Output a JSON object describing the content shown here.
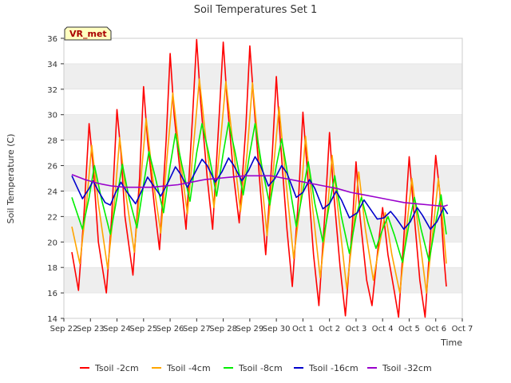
{
  "chart_data": {
    "type": "line",
    "title": "Soil Temperatures Set 1",
    "xlabel": "Time",
    "ylabel": "Soil Temperature (C)",
    "badge": "VR_met",
    "x_ticks": [
      "Sep 22",
      "Sep 23",
      "Sep 24",
      "Sep 25",
      "Sep 26",
      "Sep 27",
      "Sep 28",
      "Sep 29",
      "Sep 30",
      "Oct 1",
      "Oct 2",
      "Oct 3",
      "Oct 4",
      "Oct 5",
      "Oct 6",
      "Oct 7"
    ],
    "xlim": [
      0,
      15
    ],
    "ylim": [
      14,
      36
    ],
    "y_ticks": [
      14,
      16,
      18,
      20,
      22,
      24,
      26,
      28,
      30,
      32,
      34,
      36
    ],
    "grid": "horizontal bands",
    "legend_position": "bottom",
    "series": [
      {
        "name": "Tsoil -2cm",
        "color": "#ff0000",
        "values": [
          [
            0.3,
            19.2
          ],
          [
            0.55,
            16.2
          ],
          [
            0.75,
            22
          ],
          [
            0.95,
            29.3
          ],
          [
            1.1,
            26
          ],
          [
            1.3,
            20
          ],
          [
            1.6,
            16
          ],
          [
            1.8,
            22
          ],
          [
            2.0,
            30.4
          ],
          [
            2.15,
            27
          ],
          [
            2.3,
            22
          ],
          [
            2.6,
            17.4
          ],
          [
            2.85,
            25
          ],
          [
            3.0,
            32.2
          ],
          [
            3.15,
            28
          ],
          [
            3.4,
            23
          ],
          [
            3.6,
            19.4
          ],
          [
            3.85,
            28
          ],
          [
            4.0,
            34.8
          ],
          [
            4.15,
            30
          ],
          [
            4.4,
            25
          ],
          [
            4.6,
            21
          ],
          [
            4.85,
            30
          ],
          [
            5.0,
            35.9
          ],
          [
            5.15,
            31
          ],
          [
            5.4,
            25
          ],
          [
            5.6,
            21
          ],
          [
            5.85,
            30
          ],
          [
            6.0,
            35.7
          ],
          [
            6.15,
            31
          ],
          [
            6.4,
            25
          ],
          [
            6.6,
            21.5
          ],
          [
            6.85,
            29
          ],
          [
            7.0,
            35.4
          ],
          [
            7.15,
            31
          ],
          [
            7.4,
            24
          ],
          [
            7.6,
            19
          ],
          [
            7.85,
            27
          ],
          [
            8.0,
            33
          ],
          [
            8.15,
            28
          ],
          [
            8.4,
            21
          ],
          [
            8.6,
            16.5
          ],
          [
            8.85,
            24
          ],
          [
            9.0,
            30.2
          ],
          [
            9.15,
            26
          ],
          [
            9.4,
            19
          ],
          [
            9.6,
            15
          ],
          [
            9.85,
            23
          ],
          [
            10.0,
            28.6
          ],
          [
            10.15,
            24
          ],
          [
            10.4,
            18
          ],
          [
            10.6,
            14.2
          ],
          [
            10.85,
            21
          ],
          [
            11.0,
            26.3
          ],
          [
            11.15,
            22
          ],
          [
            11.4,
            17
          ],
          [
            11.6,
            15.0
          ],
          [
            11.85,
            20
          ],
          [
            12.0,
            22.7
          ],
          [
            12.2,
            19
          ],
          [
            12.45,
            16
          ],
          [
            12.6,
            14.1
          ],
          [
            12.85,
            22
          ],
          [
            13.0,
            26.7
          ],
          [
            13.15,
            23
          ],
          [
            13.4,
            17
          ],
          [
            13.6,
            14.1
          ],
          [
            13.85,
            22
          ],
          [
            14.0,
            26.8
          ],
          [
            14.15,
            24
          ],
          [
            14.3,
            19
          ],
          [
            14.4,
            16.5
          ]
        ]
      },
      {
        "name": "Tsoil -4cm",
        "color": "#ffa500",
        "values": [
          [
            0.3,
            21.2
          ],
          [
            0.6,
            18.3
          ],
          [
            0.85,
            23
          ],
          [
            1.05,
            27.6
          ],
          [
            1.3,
            23
          ],
          [
            1.65,
            17.9
          ],
          [
            1.9,
            23
          ],
          [
            2.1,
            28.2
          ],
          [
            2.35,
            23.5
          ],
          [
            2.65,
            19.2
          ],
          [
            2.9,
            25
          ],
          [
            3.1,
            29.7
          ],
          [
            3.35,
            25
          ],
          [
            3.65,
            20.7
          ],
          [
            3.9,
            27
          ],
          [
            4.1,
            31.7
          ],
          [
            4.35,
            27
          ],
          [
            4.65,
            22.2
          ],
          [
            4.9,
            28
          ],
          [
            5.1,
            32.8
          ],
          [
            5.35,
            28
          ],
          [
            5.65,
            22.7
          ],
          [
            5.9,
            28
          ],
          [
            6.1,
            32.6
          ],
          [
            6.35,
            28
          ],
          [
            6.65,
            22.4
          ],
          [
            6.9,
            27
          ],
          [
            7.1,
            32.5
          ],
          [
            7.35,
            27
          ],
          [
            7.65,
            20.5
          ],
          [
            7.9,
            26
          ],
          [
            8.1,
            30.6
          ],
          [
            8.35,
            25
          ],
          [
            8.65,
            18.7
          ],
          [
            8.9,
            23
          ],
          [
            9.1,
            28.3
          ],
          [
            9.35,
            23
          ],
          [
            9.65,
            17.2
          ],
          [
            9.9,
            22
          ],
          [
            10.1,
            26.8
          ],
          [
            10.35,
            22
          ],
          [
            10.65,
            16.3
          ],
          [
            10.9,
            21
          ],
          [
            11.1,
            25.5
          ],
          [
            11.35,
            21
          ],
          [
            11.65,
            17.0
          ],
          [
            11.9,
            20
          ],
          [
            12.1,
            22.3
          ],
          [
            12.35,
            19
          ],
          [
            12.65,
            16.0
          ],
          [
            12.9,
            21
          ],
          [
            13.1,
            25.0
          ],
          [
            13.35,
            21
          ],
          [
            13.65,
            16.0
          ],
          [
            13.9,
            21
          ],
          [
            14.1,
            25.0
          ],
          [
            14.25,
            22
          ],
          [
            14.4,
            18.3
          ]
        ]
      },
      {
        "name": "Tsoil -8cm",
        "color": "#00ee00",
        "values": [
          [
            0.3,
            23.5
          ],
          [
            0.7,
            21.0
          ],
          [
            0.95,
            23.5
          ],
          [
            1.15,
            26.0
          ],
          [
            1.4,
            23.5
          ],
          [
            1.75,
            20.6
          ],
          [
            2.0,
            23.5
          ],
          [
            2.2,
            26.1
          ],
          [
            2.45,
            23.5
          ],
          [
            2.75,
            21.1
          ],
          [
            3.0,
            24.5
          ],
          [
            3.2,
            27.1
          ],
          [
            3.45,
            25
          ],
          [
            3.75,
            22.3
          ],
          [
            4.0,
            26
          ],
          [
            4.2,
            28.5
          ],
          [
            4.45,
            26
          ],
          [
            4.75,
            23.2
          ],
          [
            5.0,
            27
          ],
          [
            5.2,
            29.3
          ],
          [
            5.45,
            27
          ],
          [
            5.75,
            23.6
          ],
          [
            6.0,
            27
          ],
          [
            6.2,
            29.4
          ],
          [
            6.45,
            27
          ],
          [
            6.75,
            23.7
          ],
          [
            7.0,
            27
          ],
          [
            7.2,
            29.3
          ],
          [
            7.45,
            26
          ],
          [
            7.75,
            22.9
          ],
          [
            8.0,
            26
          ],
          [
            8.2,
            28.1
          ],
          [
            8.45,
            25
          ],
          [
            8.75,
            21.2
          ],
          [
            9.0,
            24
          ],
          [
            9.2,
            26.3
          ],
          [
            9.45,
            23
          ],
          [
            9.75,
            20.0
          ],
          [
            10.0,
            23
          ],
          [
            10.2,
            25.2
          ],
          [
            10.45,
            22
          ],
          [
            10.75,
            19.1
          ],
          [
            11.0,
            22
          ],
          [
            11.2,
            23.5
          ],
          [
            11.45,
            21.5
          ],
          [
            11.75,
            19.5
          ],
          [
            12.0,
            21
          ],
          [
            12.2,
            22.0
          ],
          [
            12.45,
            20.5
          ],
          [
            12.75,
            18.4
          ],
          [
            13.0,
            21.5
          ],
          [
            13.2,
            23.5
          ],
          [
            13.45,
            21
          ],
          [
            13.75,
            18.5
          ],
          [
            14.0,
            21.5
          ],
          [
            14.2,
            23.7
          ],
          [
            14.4,
            20.6
          ]
        ]
      },
      {
        "name": "Tsoil -16cm",
        "color": "#0000cc",
        "values": [
          [
            0.3,
            25.2
          ],
          [
            0.5,
            24.3
          ],
          [
            0.7,
            23.4
          ],
          [
            0.95,
            24.2
          ],
          [
            1.1,
            24.8
          ],
          [
            1.3,
            24.0
          ],
          [
            1.55,
            23.1
          ],
          [
            1.75,
            22.9
          ],
          [
            1.95,
            23.9
          ],
          [
            2.15,
            24.7
          ],
          [
            2.35,
            24.0
          ],
          [
            2.7,
            23.0
          ],
          [
            2.95,
            24.1
          ],
          [
            3.15,
            25.1
          ],
          [
            3.35,
            24.5
          ],
          [
            3.65,
            23.6
          ],
          [
            3.95,
            24.8
          ],
          [
            4.2,
            25.9
          ],
          [
            4.4,
            25.3
          ],
          [
            4.65,
            24.3
          ],
          [
            4.9,
            25.3
          ],
          [
            5.2,
            26.5
          ],
          [
            5.4,
            26.0
          ],
          [
            5.7,
            24.7
          ],
          [
            5.95,
            25.5
          ],
          [
            6.2,
            26.6
          ],
          [
            6.4,
            26.0
          ],
          [
            6.7,
            24.8
          ],
          [
            6.95,
            25.6
          ],
          [
            7.2,
            26.7
          ],
          [
            7.4,
            26.0
          ],
          [
            7.7,
            24.4
          ],
          [
            7.95,
            25.0
          ],
          [
            8.2,
            26.0
          ],
          [
            8.4,
            25.4
          ],
          [
            8.75,
            23.5
          ],
          [
            9.0,
            23.9
          ],
          [
            9.25,
            24.9
          ],
          [
            9.45,
            24.2
          ],
          [
            9.75,
            22.6
          ],
          [
            10.0,
            23.0
          ],
          [
            10.25,
            24.0
          ],
          [
            10.45,
            23.3
          ],
          [
            10.75,
            21.9
          ],
          [
            11.05,
            22.3
          ],
          [
            11.3,
            23.3
          ],
          [
            11.5,
            22.7
          ],
          [
            11.8,
            21.8
          ],
          [
            12.05,
            21.9
          ],
          [
            12.3,
            22.4
          ],
          [
            12.5,
            21.9
          ],
          [
            12.8,
            21.0
          ],
          [
            13.05,
            21.6
          ],
          [
            13.3,
            22.7
          ],
          [
            13.5,
            22.1
          ],
          [
            13.8,
            21.0
          ],
          [
            14.05,
            21.6
          ],
          [
            14.3,
            22.7
          ],
          [
            14.45,
            22.2
          ]
        ]
      },
      {
        "name": "Tsoil -32cm",
        "color": "#9900cc",
        "values": [
          [
            0.3,
            25.3
          ],
          [
            0.8,
            24.9
          ],
          [
            1.3,
            24.6
          ],
          [
            1.8,
            24.4
          ],
          [
            2.3,
            24.3
          ],
          [
            2.8,
            24.3
          ],
          [
            3.3,
            24.3
          ],
          [
            3.8,
            24.4
          ],
          [
            4.3,
            24.5
          ],
          [
            4.8,
            24.7
          ],
          [
            5.3,
            24.9
          ],
          [
            5.8,
            25.0
          ],
          [
            6.3,
            25.1
          ],
          [
            6.8,
            25.2
          ],
          [
            7.3,
            25.2
          ],
          [
            7.8,
            25.2
          ],
          [
            8.3,
            25.0
          ],
          [
            8.8,
            24.8
          ],
          [
            9.3,
            24.6
          ],
          [
            9.8,
            24.4
          ],
          [
            10.3,
            24.2
          ],
          [
            10.8,
            23.9
          ],
          [
            11.3,
            23.7
          ],
          [
            11.8,
            23.5
          ],
          [
            12.3,
            23.3
          ],
          [
            12.8,
            23.1
          ],
          [
            13.3,
            23.0
          ],
          [
            13.8,
            22.9
          ],
          [
            14.3,
            22.8
          ],
          [
            14.45,
            22.9
          ]
        ]
      }
    ]
  }
}
